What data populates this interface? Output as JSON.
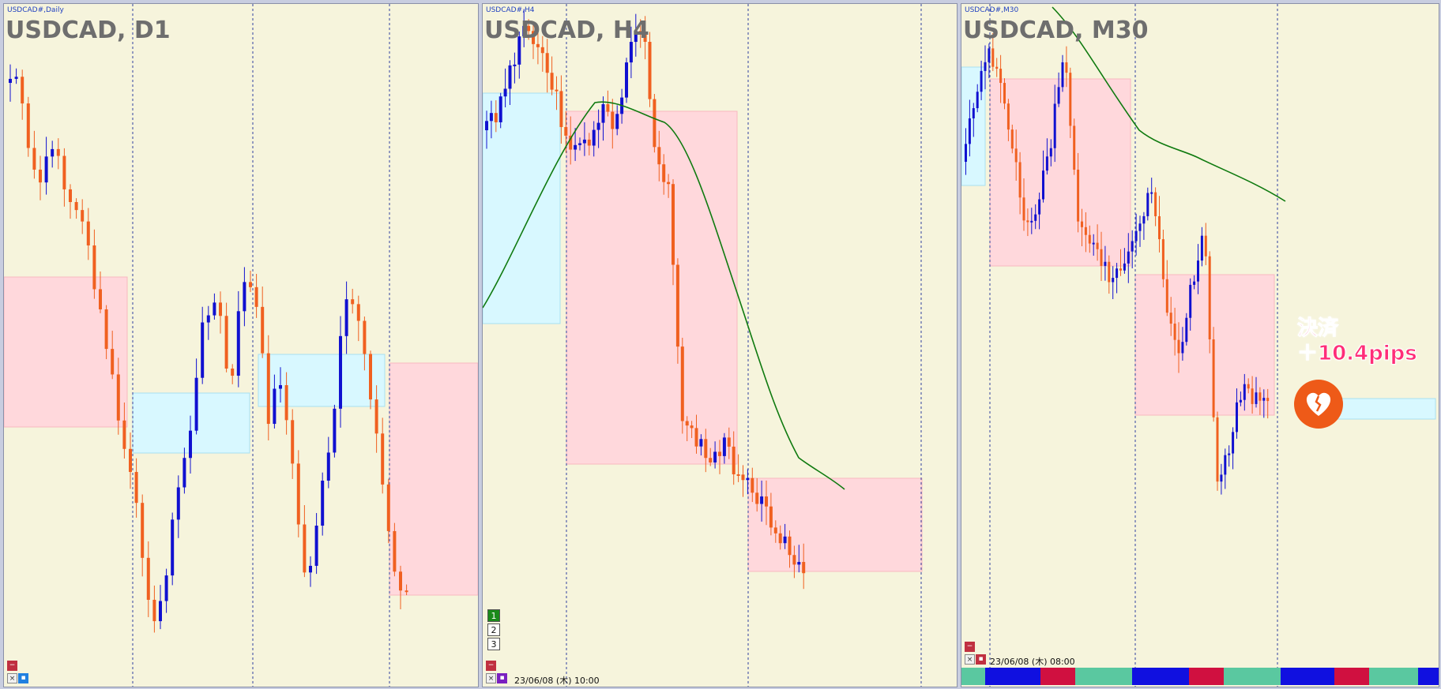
{
  "panels": [
    {
      "id": "d1",
      "subtitle": "USDCAD#,Daily",
      "symbol": "USDCAD, D1"
    },
    {
      "id": "h4",
      "subtitle": "USDCAD#,H4",
      "symbol": "USDCAD, H4",
      "timestamp": "23/06/08 (木) 10:00",
      "timeframes": [
        "1",
        "2",
        "3"
      ]
    },
    {
      "id": "m30",
      "subtitle": "USDCAD#,M30",
      "symbol": "USDCAD, M30",
      "timestamp": "23/06/08 (木) 08:00"
    }
  ],
  "annotation": {
    "line1": "決済",
    "line2": "＋10.4pips"
  },
  "icons": {
    "close": "close-icon",
    "minimize": "minus-icon",
    "heart": "broken-heart-icon"
  },
  "colors": {
    "up": "#1010d0",
    "down": "#f06020",
    "ma": "#0f7a0f",
    "bg": "#f6f4dc",
    "zone_red": "#ffd8dc",
    "zone_blue": "#d8f8ff"
  }
}
